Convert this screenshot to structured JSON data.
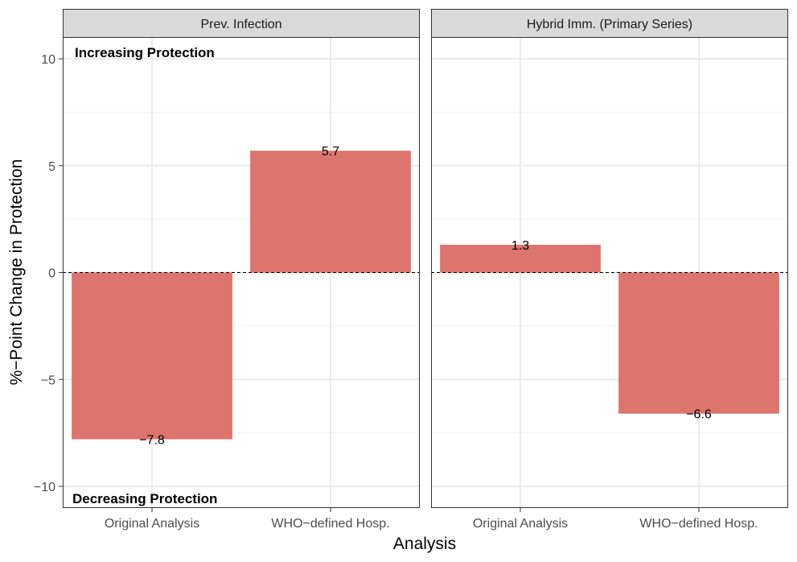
{
  "chart_data": {
    "type": "bar",
    "xlabel": "Analysis",
    "ylabel": "%−Point Change in Protection",
    "ylim": [
      -11,
      12
    ],
    "yticks": [
      "10",
      "5",
      "0",
      "−5",
      "−10"
    ],
    "ytick_values": [
      10,
      5,
      0,
      -5,
      -10
    ],
    "categories": [
      "Original Analysis",
      "WHO−defined Hosp."
    ],
    "grid": true,
    "reference_line": 0,
    "bar_color": "#DD756E",
    "annotations": {
      "top": "Increasing Protection",
      "bottom": "Decreasing Protection"
    },
    "panels": [
      {
        "title": "Prev. Infection",
        "values": [
          -7.8,
          5.7
        ],
        "labels": [
          "−7.8",
          "5.7"
        ]
      },
      {
        "title": "Hybrid Imm. (Primary Series)",
        "values": [
          1.3,
          -6.6
        ],
        "labels": [
          "1.3",
          "−6.6"
        ]
      }
    ]
  }
}
